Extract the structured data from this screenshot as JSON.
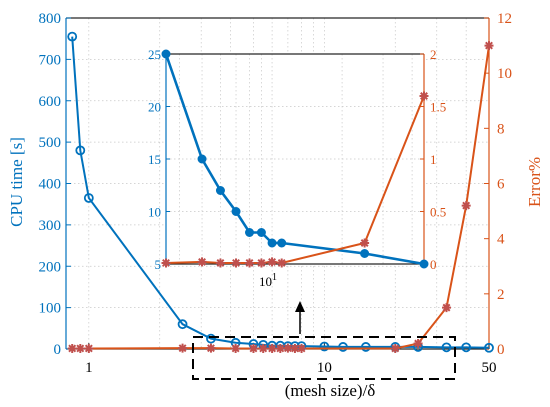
{
  "colors": {
    "cpu": "#0072BD",
    "error": "#D95319",
    "error_marker": "#C0504D",
    "grid": "#c8c8c8",
    "box": "#000000"
  },
  "chart_data": [
    {
      "name": "main",
      "type": "line",
      "x_scale": "log",
      "xlim": [
        0.8,
        50
      ],
      "xlabel": "(mesh size)/δ",
      "xticks": [
        "1",
        "10",
        "50"
      ],
      "grid": true,
      "y_left": {
        "label": "CPU time [s]",
        "ylim": [
          0,
          800
        ],
        "ticks": [
          "0",
          "100",
          "200",
          "300",
          "400",
          "500",
          "600",
          "700",
          "800"
        ]
      },
      "y_right": {
        "label": "Error%",
        "ylim": [
          0,
          12
        ],
        "ticks": [
          "0",
          "2",
          "4",
          "6",
          "8",
          "10",
          "12"
        ]
      },
      "series": [
        {
          "axis": "left",
          "marker": "open-circle",
          "x": [
            0.85,
            0.92,
            1.0,
            2.5,
            3.3,
            4.2,
            5.0,
            5.5,
            6.0,
            6.5,
            7.0,
            7.5,
            8.0,
            10.0,
            12.0,
            15.0,
            20.0,
            25.0,
            33.0,
            40.0,
            50.0
          ],
          "y": [
            755,
            480,
            365,
            60,
            25,
            15,
            12,
            10,
            8,
            8,
            7,
            7,
            7,
            6,
            5,
            5,
            5,
            5,
            4,
            4,
            3
          ]
        },
        {
          "axis": "right",
          "marker": "star",
          "x": [
            0.85,
            0.92,
            1.0,
            2.5,
            3.3,
            4.2,
            5.0,
            5.5,
            6.0,
            6.5,
            7.0,
            7.5,
            8.0,
            20.0,
            25.0,
            33.0,
            40.0,
            50.0
          ],
          "y": [
            0.02,
            0.02,
            0.02,
            0.03,
            0.03,
            0.02,
            0.02,
            0.02,
            0.02,
            0.02,
            0.03,
            0.02,
            0.02,
            0.02,
            0.2,
            1.5,
            5.2,
            11.0
          ]
        }
      ]
    },
    {
      "name": "inset",
      "type": "line",
      "x_scale": "log",
      "xlim": [
        3.5,
        45
      ],
      "xticks": [
        "10^1"
      ],
      "grid": true,
      "y_left": {
        "ylim": [
          5,
          25
        ],
        "ticks": [
          "5",
          "10",
          "15",
          "20",
          "25"
        ]
      },
      "y_right": {
        "ylim": [
          0,
          2
        ],
        "ticks": [
          "0",
          "0.5",
          "1",
          "1.5",
          "2"
        ]
      },
      "series": [
        {
          "axis": "left",
          "marker": "filled-circle",
          "x": [
            3.5,
            5.0,
            6.0,
            7.0,
            8.0,
            9.0,
            10.0,
            11.0,
            25.0,
            45.0
          ],
          "y": [
            25,
            15,
            12,
            10,
            8,
            8,
            7,
            7,
            6,
            5
          ]
        },
        {
          "axis": "right",
          "marker": "star",
          "x": [
            3.5,
            5.0,
            6.0,
            7.0,
            8.0,
            9.0,
            10.0,
            11.0,
            25.0,
            45.0
          ],
          "y": [
            0.01,
            0.02,
            0.01,
            0.01,
            0.01,
            0.01,
            0.02,
            0.01,
            0.2,
            1.6
          ]
        }
      ]
    }
  ]
}
